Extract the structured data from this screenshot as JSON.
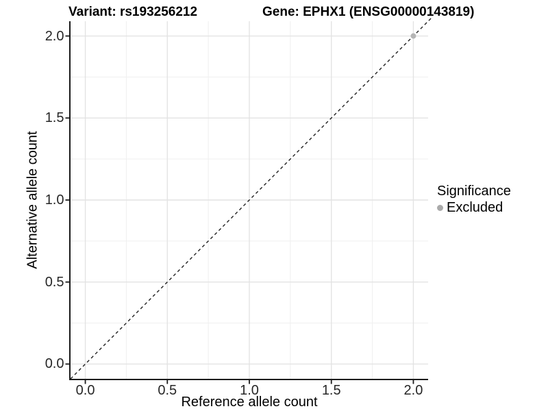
{
  "header": {
    "variant_title": "Variant: rs193256212",
    "gene_title": "Gene: EPHX1 (ENSG00000143819)"
  },
  "chart_data": {
    "type": "scatter",
    "xlabel": "Reference allele count",
    "ylabel": "Alternative allele count",
    "xlim": [
      -0.09,
      2.09
    ],
    "ylim": [
      -0.09,
      2.09
    ],
    "xticks": [
      0,
      0.5,
      1,
      1.5,
      2
    ],
    "xtick_labels": [
      "0.0",
      "0.5",
      "1.0",
      "1.5",
      "2.0"
    ],
    "yticks": [
      0,
      0.5,
      1,
      1.5,
      2
    ],
    "ytick_labels": [
      "0.0",
      "0.5",
      "1.0",
      "1.5",
      "2.0"
    ],
    "minor_xticks": [
      0.25,
      0.75,
      1.25,
      1.75
    ],
    "minor_yticks": [
      0.25,
      0.75,
      1.25,
      1.75
    ],
    "grid": "major+minor",
    "series": [
      {
        "name": "Excluded",
        "marker": "circle",
        "color": "#b5b5b5",
        "points": [
          {
            "x": 2.0,
            "y": 2.0
          }
        ]
      }
    ],
    "reference_line": {
      "slope": 1,
      "intercept": 0,
      "style": "dashed",
      "color": "#1f1f1f"
    },
    "legend": {
      "title": "Significance",
      "position": "right",
      "items": [
        {
          "label": "Excluded",
          "color": "#aaaaaa",
          "marker": "circle"
        }
      ]
    },
    "colors": {
      "grid_major": "#e3e3e3",
      "grid_minor": "#efefef",
      "axis_line": "#1a1a1a",
      "panel_bg": "#ffffff",
      "tick_text": "#262626"
    }
  }
}
